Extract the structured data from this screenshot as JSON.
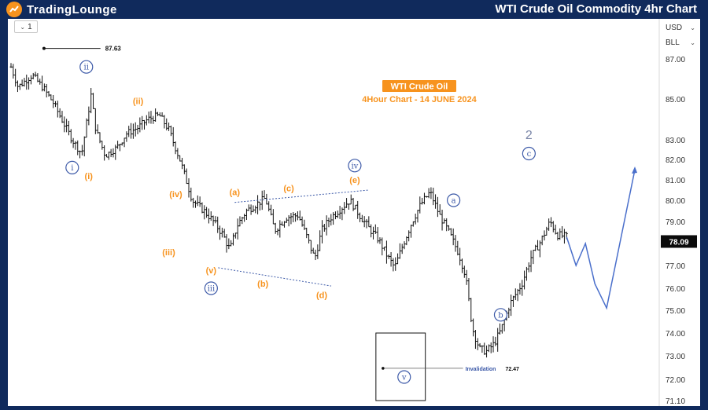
{
  "header": {
    "logo_text": "TradingLounge",
    "title": "WTI Crude Oil Commodity 4hr Chart"
  },
  "toolbar": {
    "interval_label": "1"
  },
  "axis": {
    "currency": "USD",
    "scale_name": "BLL"
  },
  "colors": {
    "frame": "#102a5c",
    "orange": "#f7931e",
    "blue": "#3d5aa8",
    "price_tag": "#0b0b0b"
  },
  "annotations": {
    "title_box": "WTI Crude Oil",
    "subtitle": "4Hour Chart - 14 JUNE 2024",
    "high_value": "87.63",
    "invalidation_label": "Invalidation",
    "invalidation_value": "72.47"
  },
  "icons": [
    "logo-icon",
    "chevron-down-icon"
  ],
  "chart_data": {
    "type": "candlestick",
    "ylim": [
      71.1,
      87.8
    ],
    "y_ticks": [
      "87.00",
      "85.00",
      "83.00",
      "82.00",
      "81.00",
      "80.00",
      "79.00",
      "77.00",
      "76.00",
      "75.00",
      "74.00",
      "73.00",
      "72.00",
      "71.10"
    ],
    "last_price": "78.09",
    "price_path": [
      [
        0,
        86.6
      ],
      [
        3,
        85.6
      ],
      [
        9,
        86.2
      ],
      [
        14,
        85.5
      ],
      [
        18,
        84.8
      ],
      [
        26,
        83.0
      ],
      [
        30,
        82.3
      ],
      [
        34,
        85.2
      ],
      [
        36,
        83.5
      ],
      [
        40,
        82.2
      ],
      [
        45,
        82.6
      ],
      [
        49,
        83.3
      ],
      [
        54,
        83.6
      ],
      [
        58,
        84.0
      ],
      [
        63,
        84.2
      ],
      [
        67,
        83.5
      ],
      [
        72,
        81.9
      ],
      [
        77,
        80.0
      ],
      [
        82,
        79.5
      ],
      [
        86,
        79.0
      ],
      [
        90,
        78.4
      ],
      [
        93,
        77.7
      ],
      [
        96,
        78.8
      ],
      [
        100,
        79.5
      ],
      [
        104,
        79.8
      ],
      [
        108,
        80.1
      ],
      [
        112,
        78.6
      ],
      [
        117,
        79.2
      ],
      [
        122,
        79.3
      ],
      [
        126,
        78.2
      ],
      [
        129,
        77.3
      ],
      [
        132,
        78.6
      ],
      [
        136,
        79.2
      ],
      [
        140,
        79.6
      ],
      [
        144,
        80.0
      ],
      [
        148,
        79.3
      ],
      [
        152,
        78.7
      ],
      [
        156,
        78.2
      ],
      [
        160,
        77.4
      ],
      [
        163,
        76.9
      ],
      [
        166,
        77.8
      ],
      [
        170,
        78.9
      ],
      [
        174,
        79.8
      ],
      [
        178,
        80.4
      ],
      [
        182,
        79.3
      ],
      [
        186,
        78.5
      ],
      [
        190,
        77.6
      ],
      [
        193,
        76.6
      ],
      [
        196,
        74.2
      ],
      [
        199,
        73.3
      ],
      [
        202,
        73.2
      ],
      [
        205,
        73.5
      ],
      [
        208,
        74.1
      ],
      [
        212,
        75.3
      ],
      [
        217,
        76.2
      ],
      [
        221,
        77.4
      ],
      [
        225,
        78.1
      ],
      [
        229,
        79.0
      ],
      [
        232,
        78.4
      ],
      [
        236,
        78.3
      ]
    ],
    "projection_path": [
      [
        236,
        78.3
      ],
      [
        240,
        77.0
      ],
      [
        244,
        78.0
      ],
      [
        248,
        76.2
      ],
      [
        253,
        75.1
      ],
      [
        265,
        81.5
      ]
    ],
    "wave_labels": [
      {
        "label": "ii",
        "x": 32,
        "y": 86.6,
        "style": "circle",
        "color": "blue"
      },
      {
        "label": "i",
        "x": 26,
        "y": 81.6,
        "style": "circle",
        "color": "blue"
      },
      {
        "label": "(i)",
        "x": 33,
        "y": 81.2,
        "style": "text",
        "color": "orange"
      },
      {
        "label": "(ii)",
        "x": 54,
        "y": 84.9,
        "style": "text",
        "color": "orange"
      },
      {
        "label": "(iv)",
        "x": 70,
        "y": 80.3,
        "style": "text",
        "color": "orange"
      },
      {
        "label": "(iii)",
        "x": 67,
        "y": 77.6,
        "style": "text",
        "color": "orange"
      },
      {
        "label": "(v)",
        "x": 85,
        "y": 76.8,
        "style": "text",
        "color": "orange"
      },
      {
        "label": "iii",
        "x": 85,
        "y": 76.0,
        "style": "circle",
        "color": "blue"
      },
      {
        "label": "(a)",
        "x": 95,
        "y": 80.4,
        "style": "text",
        "color": "orange"
      },
      {
        "label": "(b)",
        "x": 107,
        "y": 76.2,
        "style": "text",
        "color": "orange"
      },
      {
        "label": "(c)",
        "x": 118,
        "y": 80.6,
        "style": "text",
        "color": "orange"
      },
      {
        "label": "(d)",
        "x": 132,
        "y": 75.7,
        "style": "text",
        "color": "orange"
      },
      {
        "label": "iv",
        "x": 146,
        "y": 81.7,
        "style": "circle",
        "color": "blue"
      },
      {
        "label": "(e)",
        "x": 146,
        "y": 81.0,
        "style": "text",
        "color": "orange"
      },
      {
        "label": "v",
        "x": 167,
        "y": 72.1,
        "style": "circle",
        "color": "blue"
      },
      {
        "label": "a",
        "x": 188,
        "y": 80.0,
        "style": "circle",
        "color": "blue"
      },
      {
        "label": "b",
        "x": 208,
        "y": 74.8,
        "style": "circle",
        "color": "blue"
      },
      {
        "label": "2",
        "x": 220,
        "y": 83.2,
        "style": "text",
        "color": "grey"
      },
      {
        "label": "c",
        "x": 220,
        "y": 82.3,
        "style": "circle",
        "color": "blue"
      }
    ]
  }
}
